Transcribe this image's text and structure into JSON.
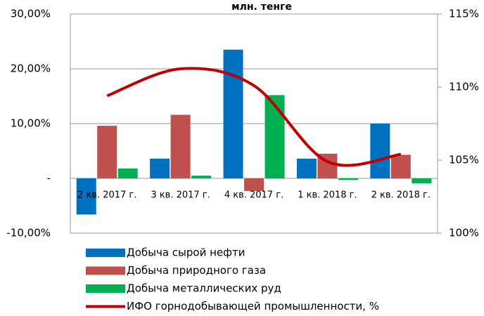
{
  "chart_data": {
    "type": "bar_line",
    "title": "млн. тенге",
    "categories": [
      "2 кв. 2017 г.",
      "3 кв. 2017 г.",
      "4 кв. 2017 г.",
      "1 кв. 2018 г.",
      "2 кв. 2018 г."
    ],
    "series": [
      {
        "name": "Добыча сырой нефти",
        "color": "#0070c0",
        "values": [
          -6.6,
          3.6,
          23.5,
          3.6,
          10.0
        ]
      },
      {
        "name": "Добыча природного газа",
        "color": "#c0504d",
        "values": [
          9.6,
          11.6,
          -2.3,
          4.5,
          4.3
        ]
      },
      {
        "name": "Добыча металлических руд",
        "color": "#00b050",
        "values": [
          1.8,
          0.5,
          15.2,
          -0.3,
          -0.9
        ]
      },
      {
        "name": "ИФО горнодобывающей промышленности, %",
        "color": "#c00000",
        "axis": "y2",
        "type": "line",
        "values": [
          109.4,
          111.25,
          110.1,
          104.9,
          105.4
        ]
      }
    ],
    "ylim": [
      -10,
      30
    ],
    "yticks": [
      {
        "value": -10,
        "label": "-10,00%"
      },
      {
        "value": 0,
        "label": "-"
      },
      {
        "value": 10,
        "label": "10,00%"
      },
      {
        "value": 20,
        "label": "20,00%"
      },
      {
        "value": 30,
        "label": "30,00%"
      }
    ],
    "y2lim": [
      100,
      115
    ],
    "y2ticks": [
      {
        "value": 100,
        "label": "100%"
      },
      {
        "value": 105,
        "label": "105%"
      },
      {
        "value": 110,
        "label": "110%"
      },
      {
        "value": 115,
        "label": "115%"
      }
    ],
    "grid": true,
    "legend": "bottom"
  }
}
